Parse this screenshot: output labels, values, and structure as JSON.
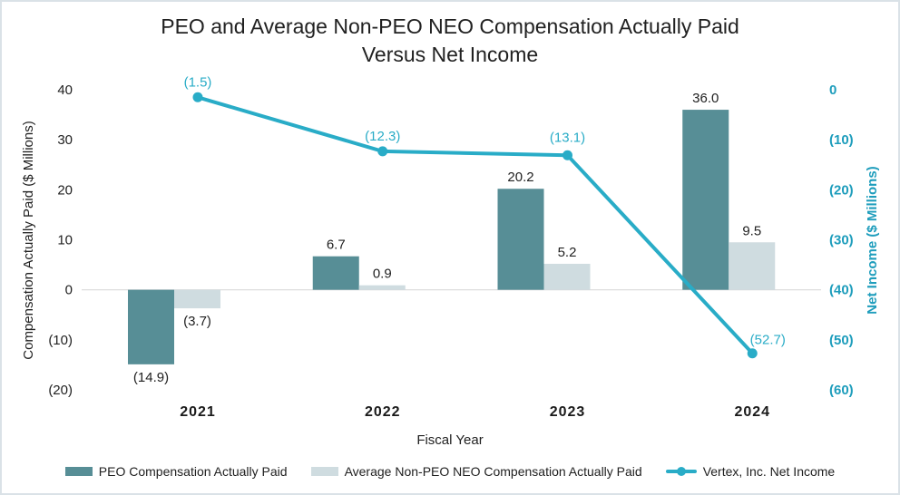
{
  "title": {
    "line1": "PEO and Average Non-PEO NEO Compensation Actually Paid",
    "line2": "Versus Net Income"
  },
  "chart_data": {
    "type": "combo-bar-line",
    "categories": [
      "2021",
      "2022",
      "2023",
      "2024"
    ],
    "xlabel": "Fiscal Year",
    "series": [
      {
        "name": "PEO Compensation Actually Paid",
        "type": "bar",
        "axis": "left",
        "color": "#578E96",
        "values": [
          -14.9,
          6.7,
          20.2,
          36.0
        ],
        "labels": [
          "(14.9)",
          "6.7",
          "20.2",
          "36.0"
        ]
      },
      {
        "name": "Average Non-PEO NEO Compensation Actually Paid",
        "type": "bar",
        "axis": "left",
        "color": "#CFDCE0",
        "values": [
          -3.7,
          0.9,
          5.2,
          9.5
        ],
        "labels": [
          "(3.7)",
          "0.9",
          "5.2",
          "9.5"
        ]
      },
      {
        "name": "Vertex, Inc. Net Income",
        "type": "line",
        "axis": "right",
        "color": "#29ACC7",
        "values": [
          -1.5,
          -12.3,
          -13.1,
          -52.7
        ],
        "labels": [
          "(1.5)",
          "(12.3)",
          "(13.1)",
          "(52.7)"
        ]
      }
    ],
    "left_axis": {
      "label": "Compensation Actually Paid ($ Millions)",
      "range": [
        -20,
        40
      ],
      "ticks": [
        40,
        30,
        20,
        10,
        0,
        -10,
        -20
      ],
      "tick_labels": [
        "40",
        "30",
        "20",
        "10",
        "0",
        "(10)",
        "(20)"
      ],
      "color": "#212121"
    },
    "right_axis": {
      "label": "Net Income ($ Millions)",
      "range": [
        -60,
        0
      ],
      "ticks": [
        0,
        -10,
        -20,
        -30,
        -40,
        -50,
        -60
      ],
      "tick_labels": [
        "0",
        "(10)",
        "(20)",
        "(30)",
        "(40)",
        "(50)",
        "(60)"
      ],
      "color": "#1E9DBC"
    },
    "grid": "zero-line-only",
    "zero_line_color": "#d9d9d9",
    "legend_position": "bottom"
  },
  "page": {
    "background": "#ffffff",
    "border_color": "#dae2e7"
  }
}
